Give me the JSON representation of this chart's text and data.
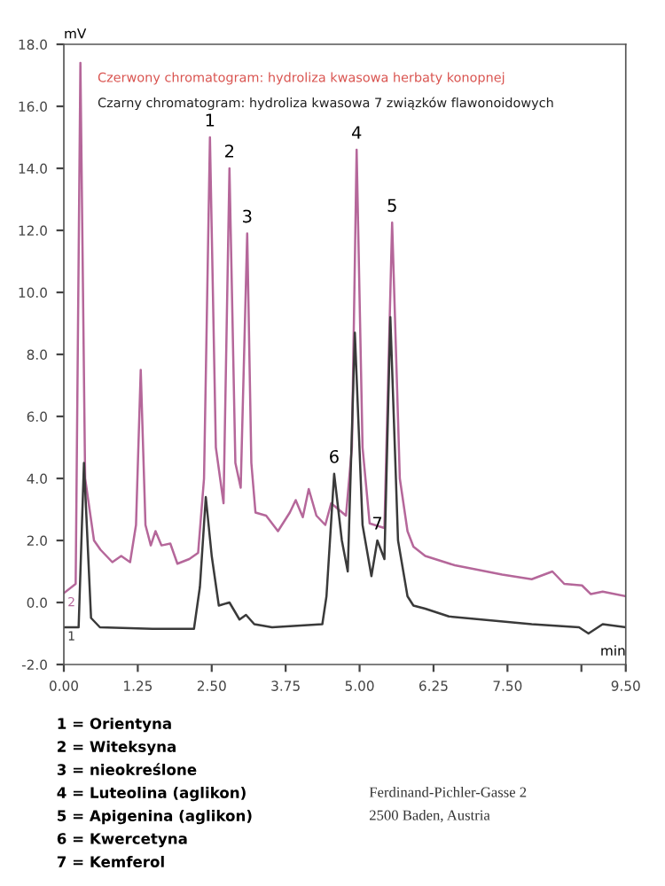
{
  "chart_data": {
    "type": "line",
    "xlabel": "min",
    "ylabel": "mV",
    "xlim": [
      0,
      9.5
    ],
    "ylim": [
      -2,
      18
    ],
    "xticks": [
      {
        "value": 0,
        "label": "0.00"
      },
      {
        "value": 1.25,
        "label": "1.25"
      },
      {
        "value": 2.5,
        "label": "2.50"
      },
      {
        "value": 3.75,
        "label": "3.75"
      },
      {
        "value": 5,
        "label": "5.00"
      },
      {
        "value": 6.25,
        "label": "6.25"
      },
      {
        "value": 7.5,
        "label": "7.50"
      },
      {
        "value": 8.75,
        "label": null
      },
      {
        "value": 9.5,
        "label": "9.50"
      }
    ],
    "yticks": [
      {
        "value": -2,
        "label": "-2.0"
      },
      {
        "value": 0,
        "label": "0.0"
      },
      {
        "value": 2,
        "label": "2.0"
      },
      {
        "value": 4,
        "label": "4.0"
      },
      {
        "value": 6,
        "label": "6.0"
      },
      {
        "value": 8,
        "label": "8.0"
      },
      {
        "value": 10,
        "label": "10.0"
      },
      {
        "value": 12,
        "label": "12.0"
      },
      {
        "value": 14,
        "label": "14.0"
      },
      {
        "value": 16,
        "label": "16.0"
      },
      {
        "value": 18,
        "label": "18.0"
      }
    ],
    "grid": false,
    "legend": false,
    "marker": "none",
    "line_style": "solid",
    "series": [
      {
        "name": "2",
        "color": "#b5679a",
        "x": [
          0,
          0.2,
          0.28,
          0.36,
          0.51,
          0.62,
          0.82,
          0.97,
          1.12,
          1.22,
          1.3,
          1.38,
          1.47,
          1.55,
          1.65,
          1.8,
          1.92,
          2.12,
          2.27,
          2.37,
          2.47,
          2.57,
          2.7,
          2.8,
          2.9,
          2.99,
          3.1,
          3.17,
          3.24,
          3.42,
          3.62,
          3.82,
          3.92,
          4.04,
          4.14,
          4.27,
          4.42,
          4.52,
          4.77,
          4.87,
          4.95,
          5.05,
          5.17,
          5.42,
          5.55,
          5.68,
          5.81,
          5.91,
          6.11,
          6.61,
          7.41,
          7.91,
          8.26,
          8.46,
          8.76,
          8.91,
          9.11,
          9.5
        ],
        "values": [
          0.3,
          0.6,
          17.4,
          4.0,
          2.0,
          1.7,
          1.3,
          1.5,
          1.3,
          2.5,
          7.5,
          2.5,
          1.84,
          2.3,
          1.84,
          1.9,
          1.25,
          1.4,
          1.6,
          4.0,
          15.0,
          5.0,
          3.2,
          14.0,
          4.5,
          3.7,
          11.9,
          4.5,
          2.9,
          2.8,
          2.3,
          2.9,
          3.3,
          2.75,
          3.66,
          2.8,
          2.5,
          3.2,
          2.8,
          5.0,
          14.6,
          5.0,
          2.55,
          2.4,
          12.25,
          4.0,
          2.3,
          1.8,
          1.5,
          1.2,
          0.9,
          0.75,
          1.0,
          0.6,
          0.55,
          0.27,
          0.35,
          0.2
        ]
      },
      {
        "name": "1",
        "color": "#3a3a3a",
        "x": [
          0,
          0.25,
          0.34,
          0.46,
          0.61,
          1.5,
          2.2,
          2.3,
          2.4,
          2.5,
          2.62,
          2.8,
          2.97,
          3.08,
          3.22,
          3.52,
          4.37,
          4.44,
          4.57,
          4.7,
          4.8,
          4.92,
          5.05,
          5.2,
          5.3,
          5.42,
          5.52,
          5.65,
          5.81,
          5.91,
          6.11,
          6.51,
          7.91,
          8.71,
          8.87,
          9.11,
          9.5
        ],
        "values": [
          -0.8,
          -0.8,
          4.5,
          -0.5,
          -0.8,
          -0.85,
          -0.85,
          0.5,
          3.4,
          1.5,
          -0.1,
          0.0,
          -0.55,
          -0.4,
          -0.7,
          -0.8,
          -0.7,
          0.2,
          4.15,
          2.0,
          1.0,
          8.7,
          2.5,
          0.85,
          2.0,
          1.4,
          9.2,
          2.0,
          0.2,
          -0.1,
          -0.2,
          -0.45,
          -0.7,
          -0.8,
          -1.0,
          -0.7,
          -0.8
        ]
      }
    ],
    "annotations": [
      "Czerwony chromatogram: hydroliza kwasowa herbaty konopnej",
      "Czarny chromatogram: hydroliza kwasowa 7 związków flawonoidowych",
      {
        "text": "1",
        "x": 2.47,
        "y": 15.0
      },
      {
        "text": "2",
        "x": 2.8,
        "y": 14.0
      },
      {
        "text": "3",
        "x": 3.1,
        "y": 11.9
      },
      {
        "text": "4",
        "x": 4.95,
        "y": 14.6
      },
      {
        "text": "5",
        "x": 5.55,
        "y": 12.25
      },
      {
        "text": "6",
        "x": 4.57,
        "y": 4.15
      },
      {
        "text": "7",
        "x": 5.3,
        "y": 2.0
      },
      "1 = Orientyna",
      "2 = Witeksyna",
      "3 = nieokreślone",
      "4 = Luteolina (aglikon)",
      "5 = Apigenina (aglikon)",
      "6 = Kwercetyna",
      "7 = Kemferol",
      "Ferdinand-Pichler-Gasse 2",
      "2500 Baden, Austria"
    ]
  }
}
